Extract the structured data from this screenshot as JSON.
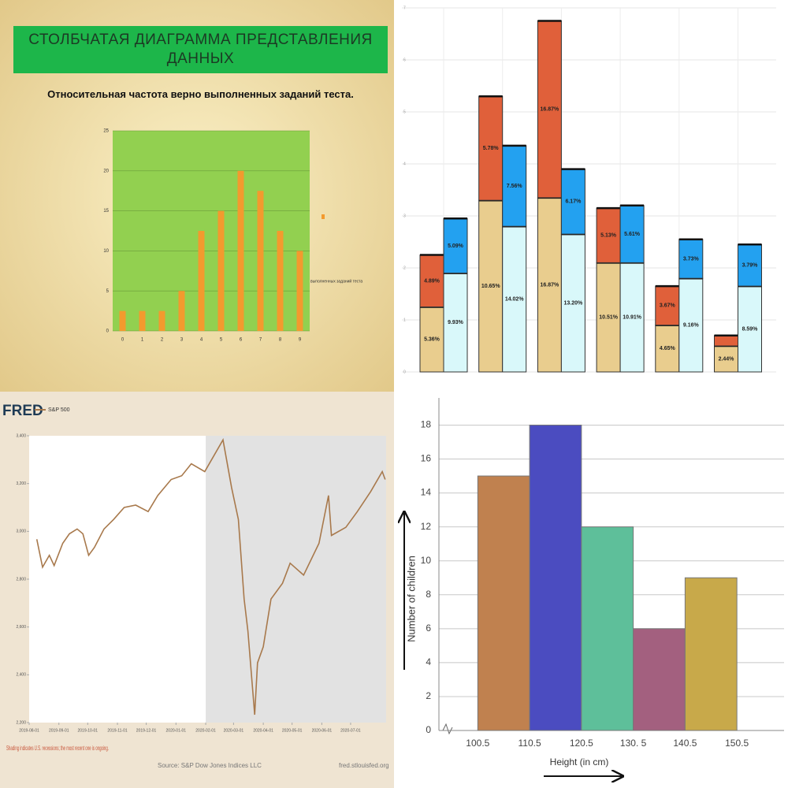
{
  "chart_data": [
    {
      "type": "bar",
      "title": "СТОЛБЧАТАЯ  ДИАГРАММА ПРЕДСТАВЛЕНИЯ ДАННЫХ",
      "subtitle": "Относительная частота верно выполненных заданий теста.",
      "categories": [
        "0",
        "1",
        "2",
        "3",
        "4",
        "5",
        "6",
        "7",
        "8",
        "9"
      ],
      "series": [
        {
          "name": "выполненных заданий теста",
          "color": "#f39a2e",
          "values": [
            2.5,
            2.5,
            2.5,
            5,
            12.5,
            15,
            20,
            17.5,
            12.5,
            10
          ]
        }
      ],
      "ylim": [
        0,
        25
      ],
      "yticks": [
        0,
        5,
        10,
        15,
        20,
        25
      ],
      "grid": true,
      "plot_color": "#92d050"
    },
    {
      "type": "stacked_grouped_bar",
      "categories": [
        null,
        null,
        null,
        null,
        null,
        null
      ],
      "series": [
        {
          "stack": 0,
          "color": "#e9cd8e",
          "values": [
            1.25,
            3.3,
            3.35,
            2.1,
            0.9,
            0.5
          ],
          "labels": [
            "5.36%",
            "10.65%",
            "16.87%",
            "10.51%",
            "4.65%",
            "2.44%"
          ]
        },
        {
          "stack": 0,
          "color": "#e0603a",
          "values": [
            1.0,
            2.0,
            3.4,
            1.05,
            0.75,
            0.2
          ],
          "labels": [
            "4.89%",
            "5.78%",
            "16.87%",
            "5.13%",
            "3.67%",
            null
          ]
        },
        {
          "stack": 1,
          "color": "#d9f8fa",
          "values": [
            1.9,
            2.8,
            2.65,
            2.1,
            1.8,
            1.65
          ],
          "labels": [
            "9.93%",
            "14.02%",
            "13.20%",
            "10.91%",
            "9.16%",
            "8.59%"
          ]
        },
        {
          "stack": 1,
          "color": "#23a1f0",
          "values": [
            1.05,
            1.55,
            1.25,
            1.1,
            0.75,
            0.8
          ],
          "labels": [
            "5.09%",
            "7.56%",
            "6.17%",
            "5.61%",
            "3.73%",
            "3.79%"
          ]
        }
      ],
      "ylim": [
        0,
        7
      ],
      "yticks": [
        0,
        1,
        2,
        3,
        4,
        5,
        6,
        7
      ],
      "grid": true
    },
    {
      "type": "line",
      "title": "FRED",
      "x": [
        "2019-08-09",
        "2019-08-15",
        "2019-08-22",
        "2019-08-27",
        "2019-09-05",
        "2019-09-12",
        "2019-09-20",
        "2019-09-26",
        "2019-10-02",
        "2019-10-08",
        "2019-10-18",
        "2019-10-28",
        "2019-11-08",
        "2019-11-20",
        "2019-12-03",
        "2019-12-13",
        "2019-12-27",
        "2020-01-07",
        "2020-01-17",
        "2020-01-31",
        "2020-02-19",
        "2020-02-28",
        "2020-03-06",
        "2020-03-12",
        "2020-03-16",
        "2020-03-23",
        "2020-03-26",
        "2020-04-01",
        "2020-04-09",
        "2020-04-21",
        "2020-04-29",
        "2020-05-13",
        "2020-05-29",
        "2020-06-08",
        "2020-06-11",
        "2020-06-26",
        "2020-07-08",
        "2020-07-22",
        "2020-08-03",
        "2020-08-06"
      ],
      "series": [
        {
          "name": "S&P 500",
          "color": "#a8794c",
          "values": [
            2967,
            2850,
            2900,
            2857,
            2950,
            2990,
            3010,
            2990,
            2900,
            2933,
            3010,
            3050,
            3100,
            3110,
            3083,
            3150,
            3217,
            3233,
            3283,
            3250,
            3383,
            3183,
            3050,
            2717,
            2583,
            2233,
            2450,
            2517,
            2717,
            2783,
            2867,
            2817,
            2950,
            3150,
            2983,
            3017,
            3083,
            3167,
            3250,
            3217
          ]
        }
      ],
      "xlim": [
        "2019-08-01",
        "2020-08-07"
      ],
      "xticks": [
        "2019-08-01",
        "2019-09-01",
        "2019-10-01",
        "2019-11-01",
        "2019-12-01",
        "2020-01-01",
        "2020-02-01",
        "2020-03-01",
        "2020-04-01",
        "2020-05-01",
        "2020-06-01",
        "2020-07-01"
      ],
      "ylim": [
        2200,
        3400
      ],
      "yticks": [
        {
          "value": 2200,
          "label": "2,200"
        },
        {
          "value": 2400,
          "label": "2,400"
        },
        {
          "value": 2600,
          "label": "2,600"
        },
        {
          "value": 2800,
          "label": "2,800"
        },
        {
          "value": 3000,
          "label": "3,000"
        },
        {
          "value": 3200,
          "label": "3,200"
        },
        {
          "value": 3400,
          "label": "3,400"
        }
      ],
      "shaded": {
        "start": "2020-02-01",
        "end": "2020-08-07"
      },
      "note": "Shading indicates U.S. recessions; the most recent one is ongoing.",
      "source": "Source: S&P Dow Jones Indices LLC",
      "url": "fred.stlouisfed.org"
    },
    {
      "type": "histogram",
      "bins": [
        100.5,
        110.5,
        120.5,
        130.5,
        140.5,
        150.5
      ],
      "values": [
        15,
        18,
        12,
        6,
        9
      ],
      "colors": [
        "#c0814f",
        "#4b4cc0",
        "#5ebf9a",
        "#a3607f",
        "#c8a94a"
      ],
      "xlabel": "Height (in cm)",
      "ylabel": "Number of children",
      "xlim": [
        93,
        159.6
      ],
      "xticks": [
        100.5,
        110.5,
        120.5,
        {
          "value": 130.5,
          "label": "130. 5"
        },
        140.5,
        150.5
      ],
      "ylim": [
        0,
        19.6
      ],
      "yticks": [
        0,
        2,
        4,
        6,
        8,
        10,
        12,
        14,
        16,
        18
      ],
      "grid": true
    }
  ]
}
